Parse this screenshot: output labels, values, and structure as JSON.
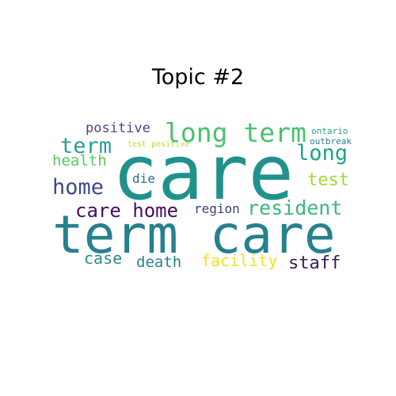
{
  "figure": {
    "title": "Topic #2"
  },
  "words": [
    {
      "text": "care",
      "color": "#21918c",
      "weight": 1.0
    },
    {
      "text": "term care",
      "color": "#26818e",
      "weight": 0.98
    },
    {
      "text": "long term",
      "color": "#4ac16d",
      "weight": 0.55
    },
    {
      "text": "term",
      "color": "#2a9d8f",
      "weight": 0.45
    },
    {
      "text": "home",
      "color": "#3e4a89",
      "weight": 0.45
    },
    {
      "text": "care home",
      "color": "#440f5e",
      "weight": 0.42
    },
    {
      "text": "resident",
      "color": "#3bb87a",
      "weight": 0.42
    },
    {
      "text": "long",
      "color": "#20a386",
      "weight": 0.42
    },
    {
      "text": "staff",
      "color": "#3b1b53",
      "weight": 0.38
    },
    {
      "text": "test",
      "color": "#a2d93a",
      "weight": 0.36
    },
    {
      "text": "facility",
      "color": "#f4e025",
      "weight": 0.35
    },
    {
      "text": "case",
      "color": "#2c8b8c",
      "weight": 0.35
    },
    {
      "text": "death",
      "color": "#2c7f8e",
      "weight": 0.33
    },
    {
      "text": "health",
      "color": "#5dc863",
      "weight": 0.33
    },
    {
      "text": "positive",
      "color": "#5b3c8c",
      "weight": 0.32
    },
    {
      "text": "region",
      "color": "#3f3c74",
      "weight": 0.3
    },
    {
      "text": "die",
      "color": "#2e6d8e",
      "weight": 0.3
    },
    {
      "text": "ontario",
      "color": "#30a08a",
      "weight": 0.2
    },
    {
      "text": "outbreak",
      "color": "#287d8e",
      "weight": 0.2
    },
    {
      "text": "test positive",
      "color": "#b8de29",
      "weight": 0.18
    }
  ]
}
